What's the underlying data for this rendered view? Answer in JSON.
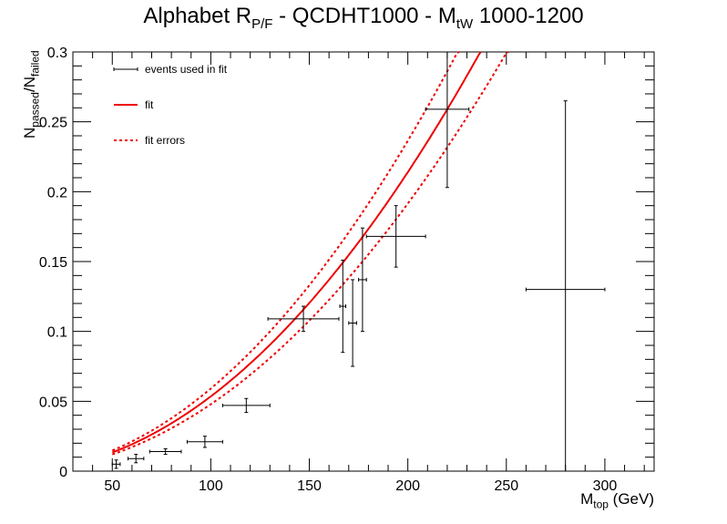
{
  "title": {
    "main": "Alphabet R",
    "sub": "P/F",
    "rest": " - QCDHT1000 - M",
    "sub2": "tW",
    "rest2": " 1000-1200"
  },
  "axes": {
    "xlabel_main": "M",
    "xlabel_sub": "top",
    "xlabel_rest": " (GeV)",
    "ylabel_a": "N",
    "ylabel_a_sub": "passed",
    "ylabel_sep": "/N",
    "ylabel_b_sub": "failed"
  },
  "legend": {
    "position": "top-left",
    "items": [
      {
        "label": "events used in fit",
        "color": "#000000",
        "style": "errorbar"
      },
      {
        "label": "fit",
        "color": "#ee0000",
        "style": "solid"
      },
      {
        "label": "fit errors",
        "color": "#ee0000",
        "style": "dotted"
      }
    ]
  },
  "chart_data": {
    "type": "scatter",
    "xlim": [
      30,
      325
    ],
    "ylim": [
      0,
      0.3
    ],
    "xticks": [
      50,
      100,
      150,
      200,
      250,
      300
    ],
    "xtick_labels": [
      "50",
      "100",
      "150",
      "200",
      "250",
      "300"
    ],
    "yticks": [
      0,
      0.05,
      0.1,
      0.15,
      0.2,
      0.25,
      0.3
    ],
    "ytick_labels": [
      "0",
      "0.05",
      "0.1",
      "0.15",
      "0.2",
      "0.25",
      "0.3"
    ],
    "grid": false,
    "series": [
      {
        "name": "events used in fit",
        "points": [
          {
            "x": 52,
            "y": 0.005,
            "xerr": 2,
            "yerr": 0.003
          },
          {
            "x": 62,
            "y": 0.009,
            "xerr": 4,
            "yerr": 0.003
          },
          {
            "x": 77,
            "y": 0.014,
            "xerr": 8,
            "yerr": 0.002
          },
          {
            "x": 97,
            "y": 0.021,
            "xerr": 9,
            "yerr": 0.004
          },
          {
            "x": 118,
            "y": 0.047,
            "xerr": 12,
            "yerr": 0.005
          },
          {
            "x": 147,
            "y": 0.109,
            "xerr": 18,
            "yerr": 0.009
          },
          {
            "x": 167,
            "y": 0.118,
            "xerr": 1.5,
            "yerr": 0.033
          },
          {
            "x": 172,
            "y": 0.106,
            "xerr": 2,
            "yerr": 0.031
          },
          {
            "x": 177,
            "y": 0.137,
            "xerr": 2,
            "yerr": 0.037
          },
          {
            "x": 194,
            "y": 0.168,
            "xerr": 15,
            "yerr": 0.022
          },
          {
            "x": 220,
            "y": 0.259,
            "xerr": 11,
            "yerr": 0.056
          }
        ]
      },
      {
        "name": "",
        "points": [
          {
            "x": 280,
            "y": 0.13,
            "xerr": 20,
            "yerr": 0.135
          }
        ]
      }
    ],
    "fit": {
      "x": [
        50,
        237
      ],
      "coeffs": [
        0.0,
        0.0,
        5.35e-06
      ]
    },
    "fit_error_band": {
      "width": 0.03
    }
  }
}
